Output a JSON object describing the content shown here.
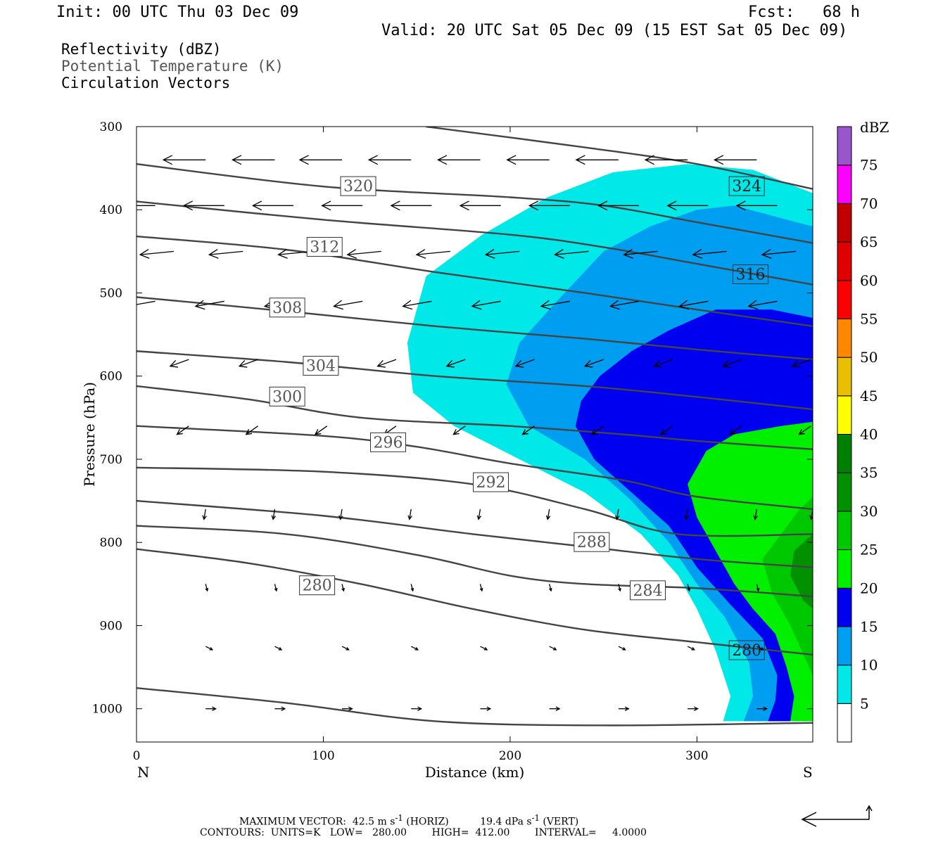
{
  "header": {
    "init": "Init: 00 UTC Thu 03 Dec 09",
    "fcst": "Fcst:   68 h",
    "valid": "Valid: 20 UTC Sat 05 Dec 09 (15 EST Sat 05 Dec 09)"
  },
  "fields": {
    "reflectivity": "Reflectivity (dBZ)",
    "theta": "Potential Temperature (K)",
    "vectors": "Circulation Vectors"
  },
  "footer": {
    "max_vector_label": "MAXIMUM VECTOR:",
    "max_h": "42.5",
    "max_h_unit": "m s",
    "max_h_kind": "(HORIZ)",
    "max_v": "19.4",
    "max_v_unit": "dPa s",
    "max_v_kind": "(VERT)",
    "exp": "-1",
    "contours": "CONTOURS:  UNITS=K   LOW=   280.00        HIGH=  412.00        INTERVAL=     4.0000"
  },
  "colors": {
    "refl": [
      "#ffffff",
      "#00e8e8",
      "#009ef0",
      "#0000f0",
      "#00f000",
      "#00c800",
      "#009000",
      "#008000",
      "#ffff00",
      "#e8c000",
      "#ff8800",
      "#ff0000",
      "#e00000",
      "#c00000",
      "#ff00ff",
      "#9955cc"
    ],
    "contour": "#444444"
  },
  "chart_data": {
    "type": "contour",
    "xlabel": "Distance (km)",
    "ylabel": "Pressure (hPa)",
    "x_ticks": [
      0,
      100,
      200,
      300
    ],
    "y_ticks": [
      300,
      400,
      500,
      600,
      700,
      800,
      900,
      1000
    ],
    "xlim": [
      0,
      362
    ],
    "ylim": [
      1040,
      300
    ],
    "left_end": "N",
    "right_end": "S",
    "colorbar": {
      "unit": "dBZ",
      "levels": [
        5,
        10,
        15,
        20,
        25,
        30,
        35,
        40,
        45,
        50,
        55,
        60,
        65,
        70,
        75
      ]
    },
    "reflectivity_regions": [
      {
        "dbz": 5,
        "outline": [
          [
            362,
            380
          ],
          [
            330,
            352
          ],
          [
            295,
            345
          ],
          [
            255,
            355
          ],
          [
            220,
            385
          ],
          [
            185,
            430
          ],
          [
            155,
            480
          ],
          [
            145,
            560
          ],
          [
            148,
            620
          ],
          [
            170,
            660
          ],
          [
            205,
            700
          ],
          [
            240,
            740
          ],
          [
            270,
            790
          ],
          [
            290,
            840
          ],
          [
            300,
            880
          ],
          [
            310,
            930
          ],
          [
            318,
            985
          ],
          [
            314,
            1015
          ],
          [
            362,
            1015
          ]
        ]
      },
      {
        "dbz": 10,
        "outline": [
          [
            362,
            420
          ],
          [
            345,
            410
          ],
          [
            320,
            395
          ],
          [
            300,
            400
          ],
          [
            275,
            420
          ],
          [
            250,
            450
          ],
          [
            225,
            510
          ],
          [
            205,
            560
          ],
          [
            198,
            610
          ],
          [
            210,
            660
          ],
          [
            240,
            700
          ],
          [
            265,
            750
          ],
          [
            285,
            800
          ],
          [
            300,
            850
          ],
          [
            315,
            890
          ],
          [
            328,
            945
          ],
          [
            330,
            985
          ],
          [
            325,
            1015
          ],
          [
            362,
            1015
          ]
        ]
      },
      {
        "dbz": 15,
        "outline": [
          [
            362,
            530
          ],
          [
            340,
            520
          ],
          [
            310,
            520
          ],
          [
            285,
            545
          ],
          [
            265,
            570
          ],
          [
            248,
            600
          ],
          [
            238,
            630
          ],
          [
            235,
            660
          ],
          [
            245,
            700
          ],
          [
            265,
            740
          ],
          [
            285,
            780
          ],
          [
            300,
            830
          ],
          [
            318,
            875
          ],
          [
            335,
            915
          ],
          [
            343,
            960
          ],
          [
            342,
            990
          ],
          [
            338,
            1015
          ],
          [
            362,
            1015
          ]
        ]
      },
      {
        "dbz": 20,
        "outline": [
          [
            362,
            655
          ],
          [
            345,
            660
          ],
          [
            320,
            670
          ],
          [
            305,
            690
          ],
          [
            295,
            730
          ],
          [
            300,
            770
          ],
          [
            310,
            810
          ],
          [
            320,
            850
          ],
          [
            330,
            880
          ],
          [
            342,
            910
          ],
          [
            348,
            950
          ],
          [
            352,
            985
          ],
          [
            350,
            1015
          ],
          [
            362,
            1015
          ]
        ]
      },
      {
        "dbz": 25,
        "outline": [
          [
            362,
            745
          ],
          [
            355,
            760
          ],
          [
            345,
            790
          ],
          [
            335,
            820
          ],
          [
            340,
            860
          ],
          [
            350,
            900
          ],
          [
            358,
            940
          ],
          [
            362,
            960
          ]
        ]
      },
      {
        "dbz": 30,
        "outline": [
          [
            362,
            790
          ],
          [
            352,
            810
          ],
          [
            350,
            840
          ],
          [
            357,
            870
          ],
          [
            362,
            880
          ]
        ]
      }
    ],
    "theta_contours": [
      {
        "k": 324,
        "points": [
          [
            155,
            300
          ],
          [
            240,
            325
          ],
          [
            300,
            345
          ],
          [
            362,
            375
          ]
        ],
        "label": [
          318,
          372
        ]
      },
      {
        "k": 320,
        "points": [
          [
            0,
            345
          ],
          [
            100,
            372
          ],
          [
            200,
            385
          ],
          [
            250,
            395
          ],
          [
            300,
            415
          ],
          [
            362,
            440
          ]
        ],
        "label": [
          110,
          372
        ]
      },
      {
        "k": 316,
        "points": [
          [
            0,
            390
          ],
          [
            100,
            412
          ],
          [
            200,
            430
          ],
          [
            250,
            445
          ],
          [
            300,
            465
          ],
          [
            362,
            490
          ]
        ],
        "label": [
          320,
          478
        ]
      },
      {
        "k": 312,
        "points": [
          [
            0,
            432
          ],
          [
            80,
            448
          ],
          [
            160,
            475
          ],
          [
            240,
            500
          ],
          [
            300,
            520
          ],
          [
            362,
            540
          ]
        ],
        "label": [
          92,
          445
        ]
      },
      {
        "k": 308,
        "points": [
          [
            0,
            505
          ],
          [
            80,
            522
          ],
          [
            160,
            540
          ],
          [
            240,
            555
          ],
          [
            300,
            568
          ],
          [
            362,
            580
          ]
        ],
        "label": [
          72,
          518
        ]
      },
      {
        "k": 304,
        "points": [
          [
            0,
            570
          ],
          [
            80,
            583
          ],
          [
            160,
            600
          ],
          [
            240,
            612
          ],
          [
            300,
            625
          ],
          [
            362,
            640
          ]
        ],
        "label": [
          90,
          588
        ]
      },
      {
        "k": 300,
        "points": [
          [
            0,
            612
          ],
          [
            60,
            628
          ],
          [
            120,
            650
          ],
          [
            200,
            660
          ],
          [
            260,
            670
          ],
          [
            300,
            678
          ],
          [
            362,
            688
          ]
        ],
        "label": [
          72,
          625
        ]
      },
      {
        "k": 296,
        "points": [
          [
            0,
            660
          ],
          [
            100,
            672
          ],
          [
            150,
            685
          ],
          [
            200,
            705
          ],
          [
            260,
            725
          ],
          [
            300,
            745
          ],
          [
            362,
            760
          ]
        ],
        "label": [
          126,
          680
        ]
      },
      {
        "k": 292,
        "points": [
          [
            0,
            710
          ],
          [
            100,
            715
          ],
          [
            180,
            730
          ],
          [
            240,
            760
          ],
          [
            290,
            790
          ],
          [
            362,
            790
          ]
        ],
        "label": [
          181,
          728
        ]
      },
      {
        "k": 288,
        "points": [
          [
            0,
            750
          ],
          [
            100,
            768
          ],
          [
            180,
            790
          ],
          [
            240,
            805
          ],
          [
            300,
            820
          ],
          [
            362,
            830
          ]
        ],
        "label": [
          235,
          800
        ]
      },
      {
        "k": 284,
        "points": [
          [
            0,
            780
          ],
          [
            80,
            790
          ],
          [
            150,
            815
          ],
          [
            200,
            840
          ],
          [
            240,
            850
          ],
          [
            300,
            855
          ],
          [
            362,
            865
          ]
        ],
        "label": [
          265,
          858
        ]
      },
      {
        "k": 280,
        "points": [
          [
            0,
            808
          ],
          [
            60,
            825
          ],
          [
            120,
            850
          ],
          [
            180,
            880
          ],
          [
            240,
            905
          ],
          [
            300,
            920
          ],
          [
            362,
            935
          ]
        ],
        "label": [
          88,
          852
        ]
      },
      {
        "k": 280,
        "points": [
          [
            0,
            975
          ],
          [
            80,
            993
          ],
          [
            160,
            1015
          ],
          [
            250,
            1020
          ],
          [
            362,
            1017
          ]
        ],
        "label": [
          318,
          930
        ]
      }
    ],
    "vectors": [
      {
        "p": 340,
        "x": [
          0,
          37,
          74,
          110,
          147,
          184,
          221,
          258,
          295,
          332
        ],
        "u": -25,
        "w": 0
      },
      {
        "p": 395,
        "x": [
          10,
          47,
          84,
          121,
          158,
          195,
          232,
          269,
          306,
          343
        ],
        "u": -24,
        "w": 0
      },
      {
        "p": 450,
        "x": [
          20,
          57,
          94,
          131,
          168,
          205,
          242,
          279,
          316,
          353
        ],
        "u": -20,
        "w": -2
      },
      {
        "p": 510,
        "x": [
          10,
          47,
          84,
          121,
          158,
          195,
          232,
          269,
          306,
          343
        ],
        "u": -17,
        "w": -3
      },
      {
        "p": 580,
        "x": [
          28,
          65,
          102,
          139,
          176,
          213,
          250,
          287,
          324,
          361
        ],
        "u": -11,
        "w": -4
      },
      {
        "p": 660,
        "x": [
          28,
          65,
          102,
          139,
          176,
          213,
          250,
          287,
          324,
          361
        ],
        "u": -7,
        "w": -5
      },
      {
        "p": 760,
        "x": [
          37,
          74,
          110,
          147,
          184,
          221,
          258,
          295,
          332,
          362
        ],
        "u": -1,
        "w": -6
      },
      {
        "p": 850,
        "x": [
          37,
          74,
          110,
          147,
          184,
          221,
          258,
          295,
          332
        ],
        "u": 1,
        "w": -4
      },
      {
        "p": 925,
        "x": [
          37,
          74,
          110,
          147,
          184,
          221,
          258,
          295,
          332
        ],
        "u": 4,
        "w": -2
      },
      {
        "p": 1000,
        "x": [
          37,
          74,
          110,
          147,
          184,
          221,
          258,
          295,
          332
        ],
        "u": 6,
        "w": 0
      }
    ]
  }
}
